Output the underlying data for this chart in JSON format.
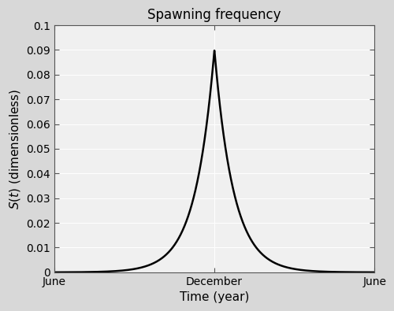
{
  "title": "Spawning frequency",
  "xlabel": "Time (year)",
  "xtick_labels": [
    "June",
    "December",
    "June"
  ],
  "ylim": [
    0,
    0.1
  ],
  "yticks": [
    0,
    0.01,
    0.02,
    0.03,
    0.04,
    0.05,
    0.06,
    0.07,
    0.08,
    0.09,
    0.1
  ],
  "ytick_labels": [
    "0",
    "0.01",
    "0.02",
    "0.03",
    "0.04",
    "0.05",
    "0.06",
    "0.07",
    "0.08",
    "0.09",
    "0.1"
  ],
  "peak_value": 0.09,
  "peak_month": 6,
  "total_months": 12,
  "decay_rate": 1.4,
  "fig_background_color": "#d8d8d8",
  "plot_background_color": "#f0f0f0",
  "line_color": "#000000",
  "line_width": 1.8,
  "title_fontsize": 12,
  "label_fontsize": 11,
  "tick_fontsize": 10,
  "grid_color": "#ffffff",
  "grid_linewidth": 0.7,
  "spine_color": "#555555"
}
